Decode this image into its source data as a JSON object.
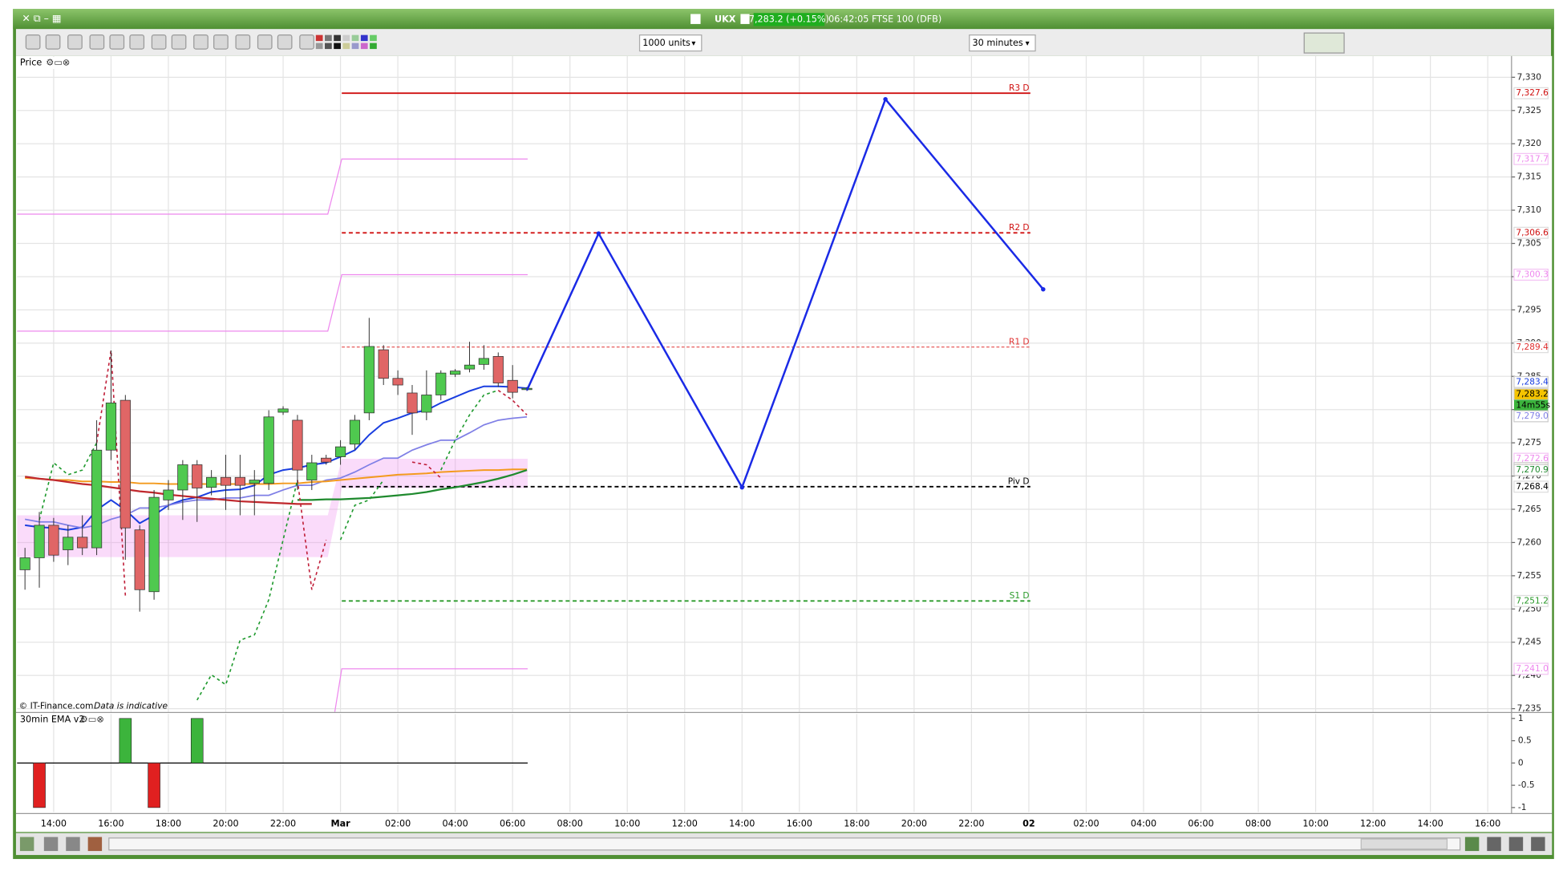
{
  "window": {
    "symbol": "UKX",
    "quote": "7,283.2 (+0.15%)",
    "info": "06:42:05 FTSE 100 (DFB)"
  },
  "toolbar": {
    "units": "1000 units",
    "interval": "30 minutes"
  },
  "panels": {
    "price": "Price",
    "indicator": "30min EMA v2",
    "watermark": "© IT-Finance.com",
    "disclaimer": "Data is indicative",
    "countdown": "14m55s"
  },
  "chart_data": {
    "type": "candlestick",
    "time_labels": [
      "14:00",
      "16:00",
      "18:00",
      "20:00",
      "22:00",
      "Mar",
      "02:00",
      "04:00",
      "06:00",
      "08:00",
      "10:00",
      "12:00",
      "14:00",
      "16:00",
      "18:00",
      "20:00",
      "22:00",
      "02",
      "02:00",
      "04:00",
      "06:00",
      "08:00",
      "10:00",
      "12:00",
      "14:00",
      "16:00"
    ],
    "ylim": [
      7234.5,
      7333.2
    ],
    "yticks": [
      {
        "value": 7235,
        "label": "7,235"
      },
      {
        "value": 7240,
        "label": "7,240"
      },
      {
        "value": 7245,
        "label": "7,245"
      },
      {
        "value": 7250,
        "label": "7,250"
      },
      {
        "value": 7255,
        "label": "7,255"
      },
      {
        "value": 7260,
        "label": "7,260"
      },
      {
        "value": 7265,
        "label": "7,265"
      },
      {
        "value": 7270,
        "label": "7,270"
      },
      {
        "value": 7275,
        "label": "7,275"
      },
      {
        "value": 7280,
        "label": "7,280"
      },
      {
        "value": 7285,
        "label": "7,285"
      },
      {
        "value": 7290,
        "label": "7,290"
      },
      {
        "value": 7295,
        "label": "7,295"
      },
      {
        "value": 7300,
        "label": "7,300"
      },
      {
        "value": 7305,
        "label": "7,305"
      },
      {
        "value": 7310,
        "label": "7,310"
      },
      {
        "value": 7315,
        "label": "7,315"
      },
      {
        "value": 7320,
        "label": "7,320"
      },
      {
        "value": 7325,
        "label": "7,325"
      },
      {
        "value": 7330,
        "label": "7,330"
      }
    ],
    "grid": true,
    "up_color": "#4fc94f",
    "down_color": "#e06666",
    "open": [
      7255.9,
      7257.7,
      7262.6,
      7258.9,
      7260.8,
      7259.2,
      7273.9,
      7281.4,
      7261.9,
      7252.6,
      7266.4,
      7267.9,
      7271.7,
      7268.3,
      7269.8,
      7269.8,
      7268.9,
      7268.9,
      7279.6,
      7278.4,
      7269.4,
      7272.7,
      7272.9,
      7274.8,
      7279.5,
      7289.0,
      7284.7,
      7282.5,
      7279.6,
      7282.2,
      7285.3,
      7286.1,
      7286.8,
      7288.0,
      7284.4,
      7283.0
    ],
    "high": [
      7259.2,
      7264.6,
      7263.7,
      7262.6,
      7264.1,
      7278.4,
      7288.9,
      7282.2,
      7262.6,
      7267.9,
      7269.4,
      7272.4,
      7272.4,
      7270.9,
      7273.2,
      7273.2,
      7270.9,
      7279.9,
      7280.5,
      7279.2,
      7273.2,
      7273.2,
      7275.4,
      7279.2,
      7293.8,
      7289.7,
      7285.9,
      7283.7,
      7285.9,
      7285.9,
      7286.1,
      7290.2,
      7289.7,
      7288.6,
      7286.7,
      7283.4
    ],
    "low": [
      7252.9,
      7253.2,
      7257.1,
      7256.6,
      7258.1,
      7258.1,
      7272.4,
      7257.4,
      7249.6,
      7251.4,
      7264.9,
      7263.4,
      7263.1,
      7267.1,
      7264.9,
      7264.1,
      7264.1,
      7267.9,
      7279.2,
      7267.9,
      7267.9,
      7271.7,
      7271.7,
      7273.9,
      7278.4,
      7283.7,
      7282.2,
      7276.2,
      7278.4,
      7281.4,
      7284.9,
      7285.6,
      7286.0,
      7283.4,
      7281.7,
      7282.8
    ],
    "close": [
      7257.7,
      7262.6,
      7258.1,
      7260.8,
      7259.2,
      7273.9,
      7281.0,
      7262.2,
      7252.9,
      7266.8,
      7267.9,
      7271.7,
      7268.2,
      7269.8,
      7268.6,
      7268.6,
      7269.4,
      7278.9,
      7280.1,
      7270.9,
      7272.0,
      7272.1,
      7274.4,
      7278.4,
      7289.5,
      7284.7,
      7283.7,
      7279.5,
      7282.2,
      7285.5,
      7285.8,
      7286.7,
      7287.7,
      7284.0,
      7282.6,
      7283.2
    ],
    "series": [
      {
        "color": "#1a3ee0",
        "width": 1.6,
        "values": [
          7262.6,
          7262.3,
          7262.2,
          7261.9,
          7262.3,
          7264.9,
          7266.4,
          7264.9,
          7262.9,
          7264.1,
          7265.6,
          7266.4,
          7266.8,
          7267.6,
          7267.9,
          7268.0,
          7268.6,
          7270.2,
          7270.9,
          7271.2,
          7271.7,
          7272.0,
          7272.9,
          7273.9,
          7276.2,
          7278.0,
          7278.7,
          7279.5,
          7279.9,
          7281.0,
          7281.9,
          7282.8,
          7283.5,
          7283.5,
          7283.4,
          7283.2
        ]
      },
      {
        "color": "#7f7fe6",
        "width": 1.4,
        "values": [
          7263.5,
          7263.1,
          7263.1,
          7262.6,
          7262.2,
          7262.6,
          7263.5,
          7264.1,
          7265.2,
          7265.2,
          7265.6,
          7266.1,
          7266.4,
          7266.4,
          7266.7,
          7266.7,
          7267.1,
          7267.1,
          7267.9,
          7268.6,
          7268.6,
          7269.4,
          7269.7,
          7270.6,
          7271.7,
          7272.7,
          7272.7,
          7273.9,
          7274.7,
          7275.4,
          7275.4,
          7276.5,
          7277.7,
          7278.4,
          7278.7,
          7278.9
        ]
      },
      {
        "color": "#f39a1e",
        "width": 1.6,
        "values": [
          7269.7,
          7269.6,
          7269.4,
          7269.4,
          7269.2,
          7269.2,
          7269.1,
          7269.1,
          7268.9,
          7268.9,
          7268.8,
          7268.8,
          7268.8,
          7268.8,
          7268.8,
          7268.8,
          7268.8,
          7268.8,
          7268.9,
          7268.9,
          7269.1,
          7269.2,
          7269.4,
          7269.6,
          7269.8,
          7270.0,
          7270.2,
          7270.3,
          7270.4,
          7270.6,
          7270.7,
          7270.8,
          7270.9,
          7270.9,
          7271.0,
          7271.0
        ]
      },
      {
        "color": "#c0282d",
        "width": 1.8,
        "values": [
          7269.9,
          7269.6,
          7269.4,
          7269.1,
          7268.8,
          7268.6,
          7268.3,
          7268.0,
          7267.7,
          7267.5,
          7267.2,
          7267.0,
          7266.8,
          7266.6,
          7266.4,
          7266.2,
          7266.1,
          7266.0,
          7265.9,
          7265.8,
          7265.8,
          null,
          null,
          null,
          null,
          null,
          null,
          null,
          null,
          null,
          null,
          null,
          null,
          null,
          null,
          null
        ]
      },
      {
        "color": "#1f8a2e",
        "width": 1.8,
        "values": [
          null,
          null,
          null,
          null,
          null,
          null,
          null,
          null,
          null,
          null,
          null,
          null,
          null,
          null,
          null,
          null,
          null,
          null,
          null,
          7266.4,
          7266.4,
          7266.5,
          7266.5,
          7266.6,
          7266.7,
          7266.9,
          7267.1,
          7267.3,
          7267.6,
          7268.0,
          7268.3,
          7268.7,
          7269.1,
          7269.6,
          7270.2,
          7270.9
        ]
      },
      {
        "color": "#1f9a2e",
        "width": 1.3,
        "dashed": true,
        "values": [
          null,
          7263.4,
          7272.0,
          7270.2,
          7270.9,
          7275.0,
          null,
          null,
          null,
          null,
          null,
          null,
          7236.3,
          7240.1,
          7238.6,
          7245.3,
          7246.1,
          7251.4,
          7260.4,
          7269.4,
          null,
          null,
          7260.4,
          7265.6,
          7266.4,
          7269.4,
          null,
          null,
          null,
          7270.9,
          7275.4,
          7279.2,
          7282.2,
          7282.9,
          null,
          null
        ]
      },
      {
        "color": "#c0203a",
        "width": 1.3,
        "dashed": true,
        "values": [
          null,
          null,
          null,
          null,
          null,
          7275.0,
          7288.9,
          7252.0,
          null,
          null,
          null,
          null,
          null,
          null,
          null,
          null,
          null,
          null,
          null,
          7269.4,
          7252.9,
          7260.4,
          null,
          null,
          null,
          null,
          null,
          7272.1,
          7271.7,
          7269.7,
          null,
          null,
          null,
          7282.9,
          7281.4,
          7279.2
        ]
      }
    ],
    "levels": [
      {
        "name": "R3 D",
        "value": 7327.6,
        "value_label": "7,327.6",
        "color": "#d01010",
        "style": "solid"
      },
      {
        "name": "R2 D",
        "value": 7306.6,
        "value_label": "7,306.6",
        "color": "#d01010",
        "style": "dashed"
      },
      {
        "name": "R1 D",
        "value": 7289.4,
        "value_label": "7,289.4",
        "color": "#e03030",
        "style": "thin"
      },
      {
        "name": "Piv D",
        "value": 7268.4,
        "value_label": "7,268.4",
        "color": "#000000",
        "style": "dashed"
      },
      {
        "name": "S1 D",
        "value": 7251.2,
        "value_label": "7,251.2",
        "color": "#2a9a2a",
        "style": "dashed"
      }
    ],
    "pink_color": "#ee88ee",
    "pink_lines": [
      {
        "previous": 7309.4,
        "current": 7317.7,
        "value_label": "7,317.7"
      },
      {
        "previous": 7291.8,
        "current": 7300.3,
        "value_label": "7,300.3"
      },
      {
        "previous": null,
        "current": 7241.0,
        "value_label": "7,241.0"
      }
    ],
    "pink_zone": {
      "previous": [
        7257.8,
        7264.1
      ],
      "current": [
        7268.2,
        7272.6
      ],
      "value_label": "7,272.6"
    },
    "price_tags": [
      {
        "value": 7283.4,
        "label": "7,283.4",
        "color": "#1a3ee0",
        "fill": "#ffffff"
      },
      {
        "value": 7283.2,
        "label": "7,283.2",
        "color": "#000000",
        "fill": "#f5c400"
      },
      {
        "value": 7279.0,
        "label": "7,279.0",
        "color": "#7f7fe6",
        "fill": "#ffffff"
      },
      {
        "value": 7271.2,
        "label": "7,271.2",
        "color": "#f39a1e",
        "fill": "#ffffff"
      },
      {
        "value": 7270.9,
        "label": "7,270.9",
        "color": "#1f8a2e",
        "fill": "#ffffff"
      }
    ],
    "drawing": {
      "color": "#1a2ae6",
      "x": [
        35,
        40,
        50,
        60,
        71
      ],
      "y": [
        7282.9,
        7306.5,
        7268.3,
        7326.7,
        7298.1
      ]
    },
    "indicator": {
      "ylim": [
        -1.1,
        1.1
      ],
      "yticks": [
        1,
        0.5,
        0,
        -0.5,
        -1
      ],
      "up_color": "#3cb43c",
      "down_color": "#e02020",
      "values": [
        0,
        -1,
        0,
        0,
        0,
        0,
        0,
        1,
        0,
        -1,
        0,
        0,
        1,
        0,
        0,
        0,
        0,
        0,
        0,
        0,
        0,
        0,
        0,
        0,
        0,
        0,
        0,
        0,
        0,
        0,
        0,
        0,
        0,
        0,
        0,
        0
      ]
    }
  }
}
